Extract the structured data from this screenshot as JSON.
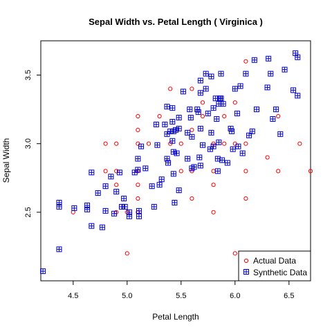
{
  "chart_data": {
    "type": "scatter",
    "title": "Sepal Width  vs.  Petal Length  ( Virginica )",
    "xlabel": "Petal Length",
    "ylabel": "Sepal Width",
    "xlim": [
      4.2,
      6.7
    ],
    "ylim": [
      2.0,
      3.75
    ],
    "xticks": [
      4.5,
      5.0,
      5.5,
      6.0,
      6.5
    ],
    "xtick_labels": [
      "4.5",
      "5.0",
      "5.5",
      "6.0",
      "6.5"
    ],
    "yticks": [
      2.5,
      3.0,
      3.5
    ],
    "ytick_labels": [
      "2.5",
      "3.0",
      "3.5"
    ],
    "legend": {
      "position": "bottom-right",
      "entries": [
        "Actual Data",
        "Synthetic Data"
      ]
    },
    "colors": {
      "actual": "#ff0000",
      "synthetic": "#0000cc"
    },
    "series": [
      {
        "name": "Actual Data",
        "marker": "circle",
        "color": "#ff0000",
        "points": [
          [
            4.5,
            2.5
          ],
          [
            4.8,
            3.0
          ],
          [
            4.8,
            2.8
          ],
          [
            4.9,
            3.0
          ],
          [
            4.9,
            2.8
          ],
          [
            4.9,
            2.7
          ],
          [
            4.9,
            2.5
          ],
          [
            5.0,
            2.5
          ],
          [
            5.0,
            2.2
          ],
          [
            5.1,
            3.2
          ],
          [
            5.1,
            3.1
          ],
          [
            5.1,
            3.0
          ],
          [
            5.1,
            2.8
          ],
          [
            5.1,
            2.7
          ],
          [
            5.1,
            2.6
          ],
          [
            5.1,
            2.5
          ],
          [
            5.2,
            3.0
          ],
          [
            5.3,
            3.2
          ],
          [
            5.4,
            3.4
          ],
          [
            5.4,
            3.0
          ],
          [
            5.5,
            3.0
          ],
          [
            5.5,
            2.8
          ],
          [
            5.6,
            3.4
          ],
          [
            5.6,
            3.1
          ],
          [
            5.6,
            2.8
          ],
          [
            5.6,
            2.6
          ],
          [
            5.7,
            3.3
          ],
          [
            5.7,
            3.2
          ],
          [
            5.8,
            3.0
          ],
          [
            5.8,
            2.8
          ],
          [
            5.8,
            2.7
          ],
          [
            5.8,
            2.5
          ],
          [
            5.9,
            3.2
          ],
          [
            5.9,
            3.0
          ],
          [
            6.0,
            3.3
          ],
          [
            6.0,
            3.0
          ],
          [
            6.0,
            2.2
          ],
          [
            6.1,
            3.6
          ],
          [
            6.1,
            3.0
          ],
          [
            6.1,
            2.8
          ],
          [
            6.1,
            2.6
          ],
          [
            6.3,
            2.9
          ],
          [
            6.4,
            3.2
          ],
          [
            6.4,
            2.8
          ],
          [
            6.6,
            3.0
          ],
          [
            6.7,
            2.8
          ]
        ]
      },
      {
        "name": "Synthetic Data",
        "marker": "square",
        "color": "#0000cc",
        "points": [
          [
            4.22,
            2.07
          ],
          [
            4.37,
            2.57
          ],
          [
            4.37,
            2.54
          ],
          [
            4.37,
            2.23
          ],
          [
            4.51,
            2.53
          ],
          [
            4.63,
            2.55
          ],
          [
            4.63,
            2.52
          ],
          [
            4.67,
            2.79
          ],
          [
            4.67,
            2.4
          ],
          [
            4.73,
            2.64
          ],
          [
            4.77,
            2.39
          ],
          [
            4.8,
            2.69
          ],
          [
            4.8,
            2.51
          ],
          [
            4.85,
            2.76
          ],
          [
            4.88,
            2.49
          ],
          [
            4.9,
            2.65
          ],
          [
            4.93,
            2.79
          ],
          [
            4.95,
            2.54
          ],
          [
            4.97,
            2.6
          ],
          [
            4.98,
            2.54
          ],
          [
            5.02,
            2.5
          ],
          [
            5.02,
            2.47
          ],
          [
            5.07,
            2.79
          ],
          [
            5.1,
            2.89
          ],
          [
            5.1,
            2.81
          ],
          [
            5.11,
            2.51
          ],
          [
            5.11,
            2.47
          ],
          [
            5.13,
            2.98
          ],
          [
            5.17,
            2.82
          ],
          [
            5.23,
            2.69
          ],
          [
            5.25,
            2.54
          ],
          [
            5.27,
            3.14
          ],
          [
            5.28,
            2.99
          ],
          [
            5.3,
            2.7
          ],
          [
            5.32,
            2.74
          ],
          [
            5.35,
            3.14
          ],
          [
            5.37,
            3.27
          ],
          [
            5.37,
            3.07
          ],
          [
            5.37,
            2.89
          ],
          [
            5.38,
            2.86
          ],
          [
            5.4,
            3.09
          ],
          [
            5.42,
            3.26
          ],
          [
            5.42,
            3.16
          ],
          [
            5.42,
            3.02
          ],
          [
            5.43,
            3.09
          ],
          [
            5.43,
            2.94
          ],
          [
            5.43,
            2.78
          ],
          [
            5.44,
            2.57
          ],
          [
            5.45,
            3.1
          ],
          [
            5.46,
            2.93
          ],
          [
            5.48,
            3.19
          ],
          [
            5.48,
            3.11
          ],
          [
            5.48,
            2.66
          ],
          [
            5.52,
            3.38
          ],
          [
            5.56,
            3.08
          ],
          [
            5.56,
            2.89
          ],
          [
            5.58,
            3.25
          ],
          [
            5.59,
            3.19
          ],
          [
            5.6,
            3.05
          ],
          [
            5.6,
            2.82
          ],
          [
            5.62,
            2.83
          ],
          [
            5.65,
            3.25
          ],
          [
            5.66,
            3.23
          ],
          [
            5.67,
            2.9
          ],
          [
            5.68,
            3.46
          ],
          [
            5.68,
            3.37
          ],
          [
            5.68,
            3.11
          ],
          [
            5.68,
            2.84
          ],
          [
            5.7,
            2.99
          ],
          [
            5.73,
            3.51
          ],
          [
            5.73,
            3.4
          ],
          [
            5.75,
            3.22
          ],
          [
            5.77,
            2.96
          ],
          [
            5.78,
            3.49
          ],
          [
            5.78,
            3.08
          ],
          [
            5.8,
            3.26
          ],
          [
            5.8,
            2.98
          ],
          [
            5.82,
            3.33
          ],
          [
            5.83,
            3.18
          ],
          [
            5.84,
            2.89
          ],
          [
            5.84,
            2.8
          ],
          [
            5.85,
            3.29
          ],
          [
            5.85,
            3.01
          ],
          [
            5.86,
            3.33
          ],
          [
            5.87,
            3.51
          ],
          [
            5.87,
            3.33
          ],
          [
            5.88,
            2.88
          ],
          [
            5.89,
            3.29
          ],
          [
            5.93,
            2.86
          ],
          [
            5.96,
            3.11
          ],
          [
            5.97,
            3.09
          ],
          [
            5.98,
            2.96
          ],
          [
            6.0,
            3.4
          ],
          [
            6.02,
            3.22
          ],
          [
            6.03,
            2.98
          ],
          [
            6.05,
            3.42
          ],
          [
            6.07,
            2.93
          ],
          [
            6.1,
            3.51
          ],
          [
            6.13,
            3.06
          ],
          [
            6.16,
            3.09
          ],
          [
            6.18,
            3.61
          ],
          [
            6.2,
            3.25
          ],
          [
            6.3,
            3.41
          ],
          [
            6.31,
            3.62
          ],
          [
            6.33,
            3.51
          ],
          [
            6.35,
            3.18
          ],
          [
            6.38,
            3.25
          ],
          [
            6.42,
            3.07
          ],
          [
            6.46,
            3.54
          ],
          [
            6.54,
            3.39
          ],
          [
            6.56,
            3.66
          ],
          [
            6.58,
            3.35
          ],
          [
            6.58,
            3.63
          ]
        ]
      }
    ]
  }
}
